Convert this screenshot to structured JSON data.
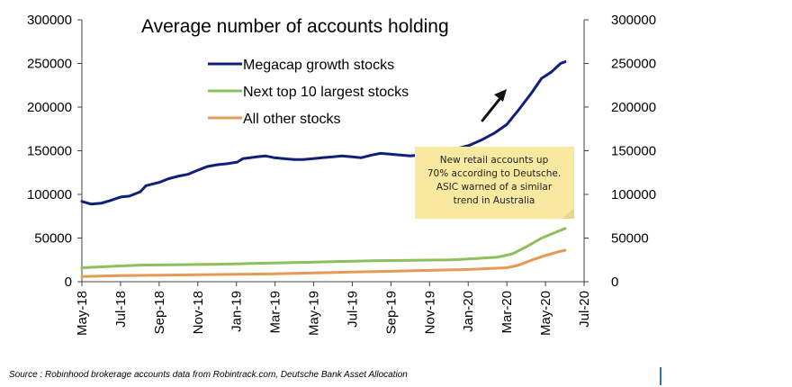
{
  "chart_data": {
    "type": "line",
    "title": "Average number of accounts holding",
    "x_ticks": [
      "May-18",
      "Jul-18",
      "Sep-18",
      "Nov-18",
      "Jan-19",
      "Mar-19",
      "May-19",
      "Jul-19",
      "Sep-19",
      "Nov-19",
      "Jan-20",
      "Mar-20",
      "May-20",
      "Jul-20"
    ],
    "y_ticks": [
      "0",
      "50000",
      "100000",
      "150000",
      "200000",
      "250000",
      "300000"
    ],
    "ylim": [
      0,
      300000
    ],
    "xlim": [
      "2018-05-01",
      "2020-07-01"
    ],
    "grid": false,
    "legend_position": "top-center",
    "series": [
      {
        "name": "Megacap growth stocks",
        "color": "#0f1f7a",
        "points": [
          [
            "2018-05-01",
            92000
          ],
          [
            "2018-05-15",
            89000
          ],
          [
            "2018-06-01",
            90000
          ],
          [
            "2018-06-15",
            93000
          ],
          [
            "2018-07-01",
            97000
          ],
          [
            "2018-07-15",
            98000
          ],
          [
            "2018-08-01",
            103000
          ],
          [
            "2018-08-10",
            110000
          ],
          [
            "2018-09-01",
            114000
          ],
          [
            "2018-09-15",
            118000
          ],
          [
            "2018-10-01",
            121000
          ],
          [
            "2018-10-15",
            123000
          ],
          [
            "2018-11-01",
            128000
          ],
          [
            "2018-11-15",
            132000
          ],
          [
            "2018-12-01",
            134000
          ],
          [
            "2018-12-15",
            135000
          ],
          [
            "2019-01-01",
            137000
          ],
          [
            "2019-01-10",
            141000
          ],
          [
            "2019-02-01",
            143000
          ],
          [
            "2019-02-15",
            144000
          ],
          [
            "2019-03-01",
            142000
          ],
          [
            "2019-03-15",
            141000
          ],
          [
            "2019-04-01",
            140000
          ],
          [
            "2019-04-15",
            140000
          ],
          [
            "2019-05-01",
            141000
          ],
          [
            "2019-05-15",
            142000
          ],
          [
            "2019-06-01",
            143000
          ],
          [
            "2019-06-15",
            144000
          ],
          [
            "2019-07-01",
            143000
          ],
          [
            "2019-07-15",
            142000
          ],
          [
            "2019-08-01",
            145000
          ],
          [
            "2019-08-15",
            147000
          ],
          [
            "2019-09-01",
            146000
          ],
          [
            "2019-09-15",
            145000
          ],
          [
            "2019-10-01",
            144000
          ],
          [
            "2019-10-15",
            145000
          ],
          [
            "2019-11-01",
            146000
          ],
          [
            "2019-12-01",
            150000
          ],
          [
            "2020-01-01",
            156000
          ],
          [
            "2020-01-20",
            162000
          ],
          [
            "2020-02-10",
            170000
          ],
          [
            "2020-03-01",
            180000
          ],
          [
            "2020-03-20",
            197000
          ],
          [
            "2020-04-10",
            217000
          ],
          [
            "2020-04-25",
            233000
          ],
          [
            "2020-05-10",
            240000
          ],
          [
            "2020-05-25",
            250000
          ],
          [
            "2020-06-01",
            252000
          ]
        ]
      },
      {
        "name": "Next top 10 largest stocks",
        "color": "#8dbf5a",
        "points": [
          [
            "2018-05-01",
            16000
          ],
          [
            "2018-06-01",
            17000
          ],
          [
            "2018-07-01",
            18000
          ],
          [
            "2018-08-01",
            19000
          ],
          [
            "2018-10-01",
            19500
          ],
          [
            "2018-12-01",
            20000
          ],
          [
            "2019-02-01",
            21000
          ],
          [
            "2019-04-01",
            22000
          ],
          [
            "2019-06-01",
            23000
          ],
          [
            "2019-08-01",
            24000
          ],
          [
            "2019-10-01",
            24500
          ],
          [
            "2019-12-01",
            25000
          ],
          [
            "2020-01-01",
            26000
          ],
          [
            "2020-02-15",
            28000
          ],
          [
            "2020-03-10",
            32000
          ],
          [
            "2020-04-01",
            40000
          ],
          [
            "2020-04-25",
            50000
          ],
          [
            "2020-05-15",
            56000
          ],
          [
            "2020-06-01",
            61000
          ]
        ]
      },
      {
        "name": "All other stocks",
        "color": "#e69a55",
        "points": [
          [
            "2018-05-01",
            6000
          ],
          [
            "2018-07-01",
            7000
          ],
          [
            "2018-09-01",
            7500
          ],
          [
            "2018-11-01",
            8000
          ],
          [
            "2019-01-01",
            8500
          ],
          [
            "2019-03-01",
            9000
          ],
          [
            "2019-05-01",
            10000
          ],
          [
            "2019-07-01",
            11000
          ],
          [
            "2019-09-01",
            12000
          ],
          [
            "2019-11-01",
            13000
          ],
          [
            "2020-01-01",
            14000
          ],
          [
            "2020-03-01",
            16000
          ],
          [
            "2020-03-20",
            19000
          ],
          [
            "2020-04-10",
            25000
          ],
          [
            "2020-05-01",
            30000
          ],
          [
            "2020-05-20",
            34000
          ],
          [
            "2020-06-01",
            36000
          ]
        ]
      }
    ],
    "annotation": [
      "New retail accounts up",
      "70% according to Deutsche.",
      "ASIC warned of a similar",
      "trend in Australia"
    ]
  },
  "source": "Source : Robinhood brokerage accounts data from Robintrack.com, Deutsche Bank Asset Allocation",
  "colors": {
    "note_bg": "#f8e8a0",
    "arrow": "#111111"
  }
}
